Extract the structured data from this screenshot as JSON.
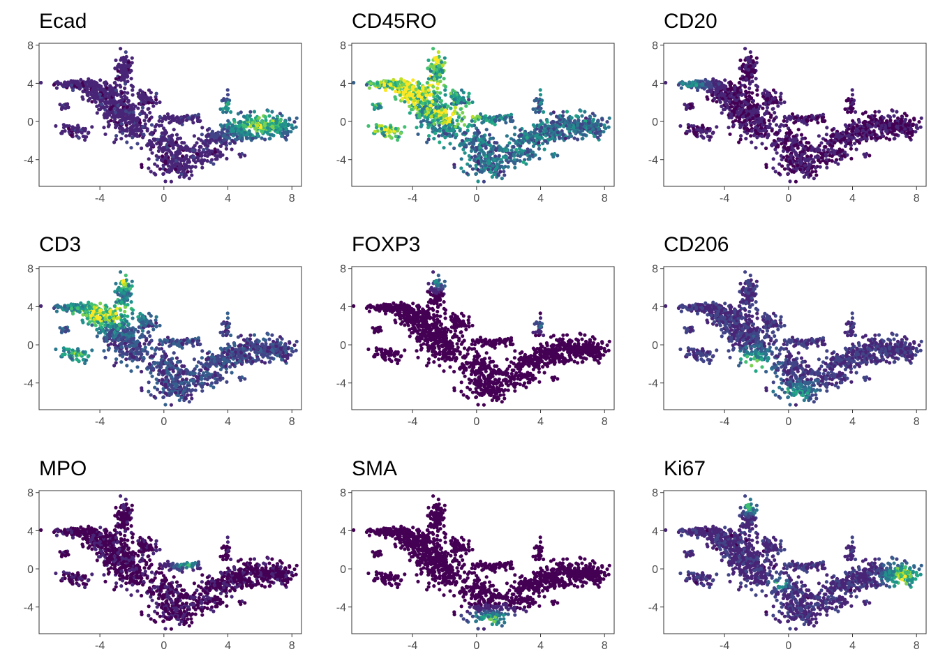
{
  "colors": {
    "background": "#ffffff",
    "panel_border": "#333333",
    "tick_label": "#4d4d4d",
    "title": "#000000",
    "palette": [
      "#440154",
      "#482576",
      "#414487",
      "#35608d",
      "#2a788e",
      "#21918c",
      "#22a884",
      "#43bf71",
      "#7ad151",
      "#bddf26",
      "#fde725"
    ]
  },
  "chart_data": {
    "type": "scatter",
    "shared_embedding": {
      "description": "UMAP-like 2D embedding shared by all panels",
      "xlim": [
        -7.8,
        8.6
      ],
      "ylim": [
        -6.8,
        8.2
      ],
      "x_ticks": [
        "-4",
        "0",
        "4",
        "8"
      ],
      "x_tick_values": [
        -4,
        0,
        4,
        8
      ],
      "y_ticks": [
        "8",
        "4",
        "0",
        "-4"
      ],
      "y_tick_values": [
        8,
        4,
        0,
        -4
      ],
      "grid": false,
      "legend": "none"
    },
    "panels": [
      {
        "title": "Ecad",
        "hotspots": [
          {
            "x": 6.0,
            "y": -0.3,
            "rx": 2.4,
            "ry": 1.6,
            "level": 0.8
          },
          {
            "x": 3.9,
            "y": 1.6,
            "rx": 0.7,
            "ry": 0.7,
            "level": 0.6
          }
        ],
        "base": 0.1
      },
      {
        "title": "CD45RO",
        "hotspots": [
          {
            "x": -4.2,
            "y": 3.4,
            "rx": 2.8,
            "ry": 2.2,
            "level": 0.85
          },
          {
            "x": -2.6,
            "y": 6.5,
            "rx": 0.8,
            "ry": 1.0,
            "level": 0.75
          },
          {
            "x": -5.6,
            "y": -1.0,
            "rx": 1.4,
            "ry": 0.9,
            "level": 0.6
          },
          {
            "x": -1.5,
            "y": 0.5,
            "rx": 2.0,
            "ry": 1.2,
            "level": 0.55
          }
        ],
        "base": 0.35
      },
      {
        "title": "CD20",
        "hotspots": [
          {
            "x": -6.0,
            "y": 3.9,
            "rx": 1.4,
            "ry": 0.6,
            "level": 0.5
          }
        ],
        "base": 0.05
      },
      {
        "title": "CD3",
        "hotspots": [
          {
            "x": -3.8,
            "y": 3.4,
            "rx": 2.4,
            "ry": 1.8,
            "level": 0.85
          },
          {
            "x": -2.5,
            "y": 6.5,
            "rx": 0.8,
            "ry": 1.0,
            "level": 0.7
          },
          {
            "x": -5.6,
            "y": -1.0,
            "rx": 1.4,
            "ry": 0.9,
            "level": 0.5
          }
        ],
        "base": 0.2
      },
      {
        "title": "FOXP3",
        "hotspots": [
          {
            "x": -2.3,
            "y": 6.6,
            "rx": 0.7,
            "ry": 0.8,
            "level": 0.5
          },
          {
            "x": 3.9,
            "y": 2.0,
            "rx": 0.6,
            "ry": 0.6,
            "level": 0.35
          }
        ],
        "base": 0.03
      },
      {
        "title": "CD206",
        "hotspots": [
          {
            "x": -2.2,
            "y": -1.8,
            "rx": 1.2,
            "ry": 1.5,
            "level": 0.6
          },
          {
            "x": 0.5,
            "y": -5.0,
            "rx": 1.5,
            "ry": 1.0,
            "level": 0.45
          }
        ],
        "base": 0.15
      },
      {
        "title": "MPO",
        "hotspots": [
          {
            "x": 1.4,
            "y": 0.4,
            "rx": 0.9,
            "ry": 0.5,
            "level": 0.6
          }
        ],
        "base": 0.04
      },
      {
        "title": "SMA",
        "hotspots": [
          {
            "x": 1.0,
            "y": -5.3,
            "rx": 1.7,
            "ry": 0.9,
            "level": 0.75
          }
        ],
        "base": 0.03
      },
      {
        "title": "Ki67",
        "hotspots": [
          {
            "x": 7.2,
            "y": -0.8,
            "rx": 1.2,
            "ry": 1.5,
            "level": 0.85
          },
          {
            "x": -0.5,
            "y": -1.5,
            "rx": 0.6,
            "ry": 0.6,
            "level": 0.6
          },
          {
            "x": -2.4,
            "y": 6.5,
            "rx": 0.6,
            "ry": 0.8,
            "level": 0.6
          }
        ],
        "base": 0.12
      }
    ]
  }
}
